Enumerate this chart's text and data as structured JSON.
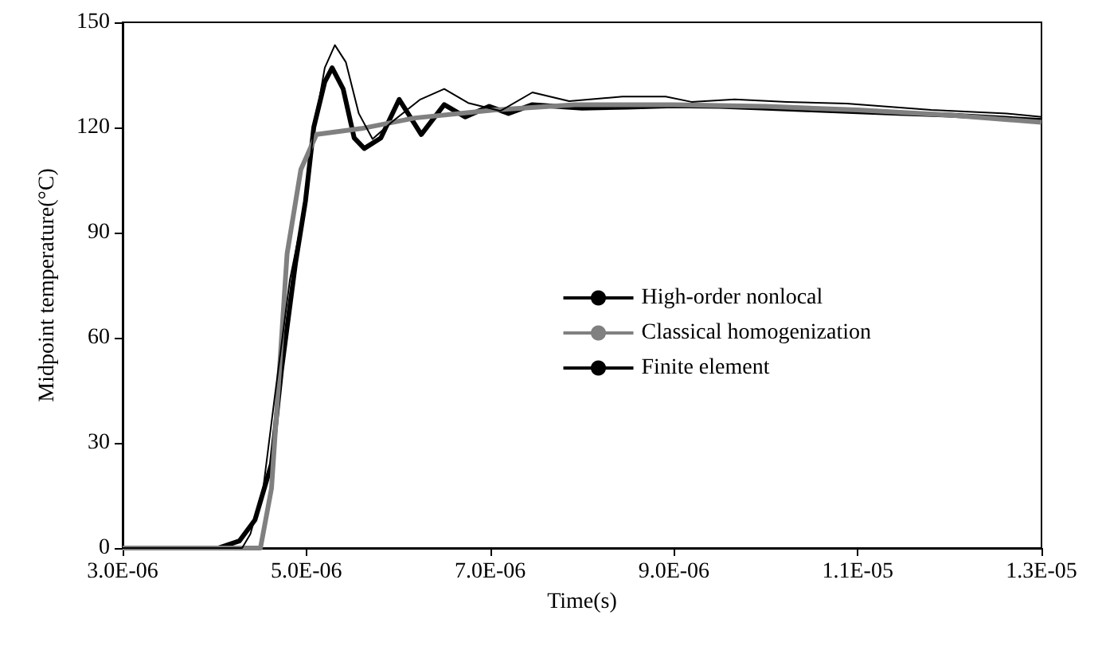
{
  "chart_data": {
    "type": "line",
    "xlabel": "Time(s)",
    "ylabel": "Midpoint temperature(°C)",
    "xlim": [
      3e-06,
      1.3e-05
    ],
    "xticks": [
      {
        "value": 3e-06,
        "label": "3.0E-06"
      },
      {
        "value": 5e-06,
        "label": "5.0E-06"
      },
      {
        "value": 7e-06,
        "label": "7.0E-06"
      },
      {
        "value": 9e-06,
        "label": "9.0E-06"
      },
      {
        "value": 1.1e-05,
        "label": "1.1E-05"
      },
      {
        "value": 1.3e-05,
        "label": "1.3E-05"
      }
    ],
    "ylim": [
      0,
      150
    ],
    "yticks": [
      0,
      30,
      60,
      90,
      120,
      150
    ],
    "grid": false,
    "legend": "right",
    "marker": "none",
    "line_style": "solid",
    "series": [
      {
        "name": "High-order nonlocal",
        "color": "#000000",
        "x": [
          3e-06,
          4.04e-06,
          4.27e-06,
          4.44e-06,
          4.62e-06,
          4.73e-06,
          4.88e-06,
          4.99e-06,
          5.08e-06,
          5.2e-06,
          5.28e-06,
          5.4e-06,
          5.52e-06,
          5.63e-06,
          5.81e-06,
          6.01e-06,
          6.25e-06,
          6.5e-06,
          6.73e-06,
          6.99e-06,
          7.2e-06,
          7.46e-06,
          8e-06,
          8.5e-06,
          9e-06,
          9.5e-06,
          1e-05,
          1.05e-05,
          1.1e-05,
          1.15e-05,
          1.2e-05,
          1.25e-05,
          1.3e-05
        ],
        "values": [
          0,
          0,
          2,
          8,
          24,
          51,
          81,
          99,
          120,
          133,
          137,
          131,
          117,
          114,
          117,
          128,
          118,
          126.5,
          123,
          126,
          124,
          126.5,
          125.5,
          125.8,
          126.2,
          126,
          125.5,
          125,
          124.5,
          124,
          123.5,
          122.8,
          122
        ]
      },
      {
        "name": "Classical homogenization",
        "color": "#808080",
        "x": [
          3e-06,
          4.45e-06,
          4.5e-06,
          4.62e-06,
          4.7e-06,
          4.79e-06,
          4.94e-06,
          5.11e-06,
          5.6e-06,
          6.18e-06,
          7.05e-06,
          7.92e-06,
          8.5e-06,
          9e-06,
          1e-05,
          1.1e-05,
          1.2e-05,
          1.3e-05
        ],
        "values": [
          0,
          0,
          0,
          17,
          48,
          84,
          108,
          118,
          119.7,
          122.7,
          125,
          126.5,
          126.5,
          126.5,
          126,
          125,
          123.5,
          121.5
        ]
      },
      {
        "name": "Finite element",
        "color": "#000000",
        "x": [
          3e-06,
          4e-06,
          4.3e-06,
          4.39e-06,
          4.53e-06,
          4.65e-06,
          4.82e-06,
          4.97e-06,
          5.08e-06,
          5.2e-06,
          5.31e-06,
          5.43e-06,
          5.57e-06,
          5.72e-06,
          5.95e-06,
          6.24e-06,
          6.5e-06,
          6.76e-06,
          7.11e-06,
          7.46e-06,
          7.86e-06,
          8.44e-06,
          8.91e-06,
          9.19e-06,
          9.66e-06,
          1.023e-05,
          1.088e-05,
          1.18e-05,
          1.262e-05,
          1.3e-05
        ],
        "values": [
          0,
          0,
          0,
          4,
          17,
          42,
          76.5,
          96,
          119,
          137,
          143.5,
          138.6,
          124,
          116.7,
          122,
          128,
          131,
          127,
          124.7,
          130,
          127.5,
          128.8,
          128.8,
          127.3,
          128,
          127.3,
          126.8,
          125,
          124,
          123
        ]
      }
    ]
  }
}
